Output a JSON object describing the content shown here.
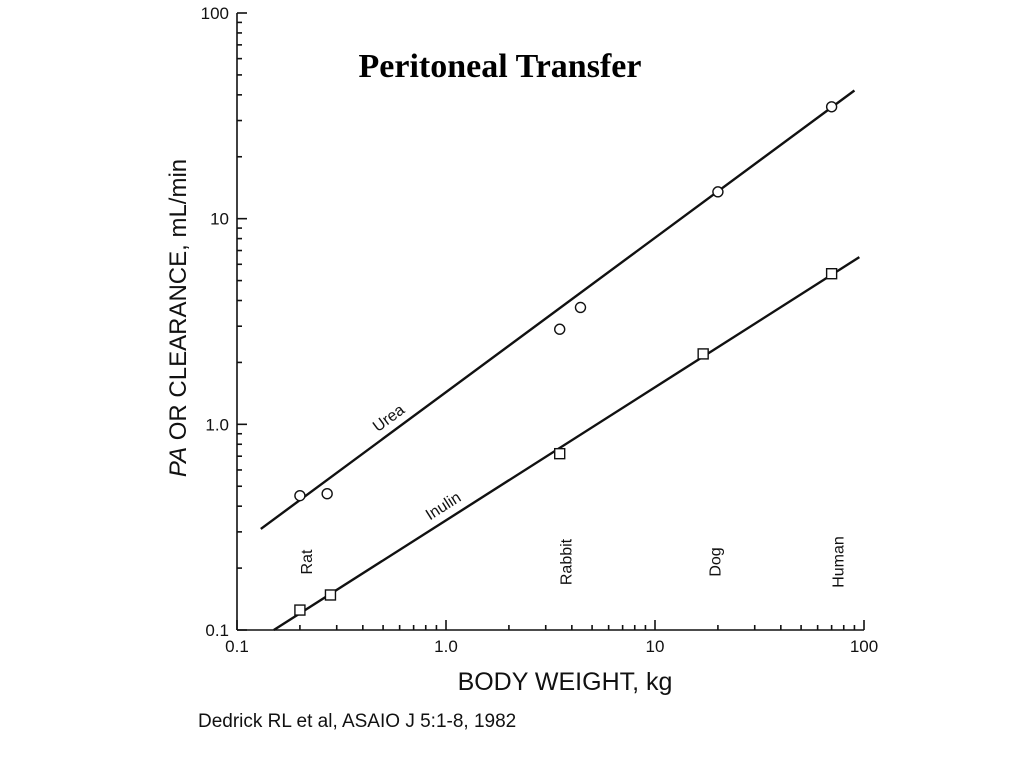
{
  "chart_data": {
    "type": "scatter",
    "title": "Peritoneal Transfer",
    "xlabel": "BODY WEIGHT, kg",
    "ylabel_italic": "PA",
    "ylabel_rest": " OR CLEARANCE, mL/min",
    "xscale": "log",
    "yscale": "log",
    "xlim": [
      0.1,
      100
    ],
    "ylim": [
      0.1,
      100
    ],
    "x_ticks": [
      {
        "value": 0.1,
        "label": "0.1"
      },
      {
        "value": 1,
        "label": "1.0"
      },
      {
        "value": 10,
        "label": "10"
      },
      {
        "value": 100,
        "label": "100"
      }
    ],
    "y_ticks": [
      {
        "value": 0.1,
        "label": "0.1"
      },
      {
        "value": 1,
        "label": "1.0"
      },
      {
        "value": 10,
        "label": "10"
      },
      {
        "value": 100,
        "label": "100"
      }
    ],
    "series": [
      {
        "name": "Urea",
        "marker": "circle",
        "points": [
          {
            "x": 0.2,
            "y": 0.45
          },
          {
            "x": 0.27,
            "y": 0.46
          },
          {
            "x": 3.5,
            "y": 2.9
          },
          {
            "x": 4.4,
            "y": 3.7
          },
          {
            "x": 20,
            "y": 13.5
          },
          {
            "x": 70,
            "y": 35
          }
        ],
        "fit_line": [
          {
            "x": 0.13,
            "y": 0.31
          },
          {
            "x": 90,
            "y": 42
          }
        ]
      },
      {
        "name": "Inulin",
        "marker": "square",
        "points": [
          {
            "x": 0.2,
            "y": 0.125
          },
          {
            "x": 0.28,
            "y": 0.148
          },
          {
            "x": 3.5,
            "y": 0.72
          },
          {
            "x": 17,
            "y": 2.2
          },
          {
            "x": 70,
            "y": 5.4
          }
        ],
        "fit_line": [
          {
            "x": 0.15,
            "y": 0.1
          },
          {
            "x": 95,
            "y": 6.5
          }
        ]
      }
    ],
    "annotations": [
      {
        "text": "Rat",
        "x": 0.2
      },
      {
        "text": "Rabbit",
        "x": 3.5
      },
      {
        "text": "Dog",
        "x": 18
      },
      {
        "text": "Human",
        "x": 70
      }
    ],
    "grid": false,
    "legend": "none"
  },
  "citation": "Dedrick RL et al, ASAIO J  5:1-8, 1982"
}
